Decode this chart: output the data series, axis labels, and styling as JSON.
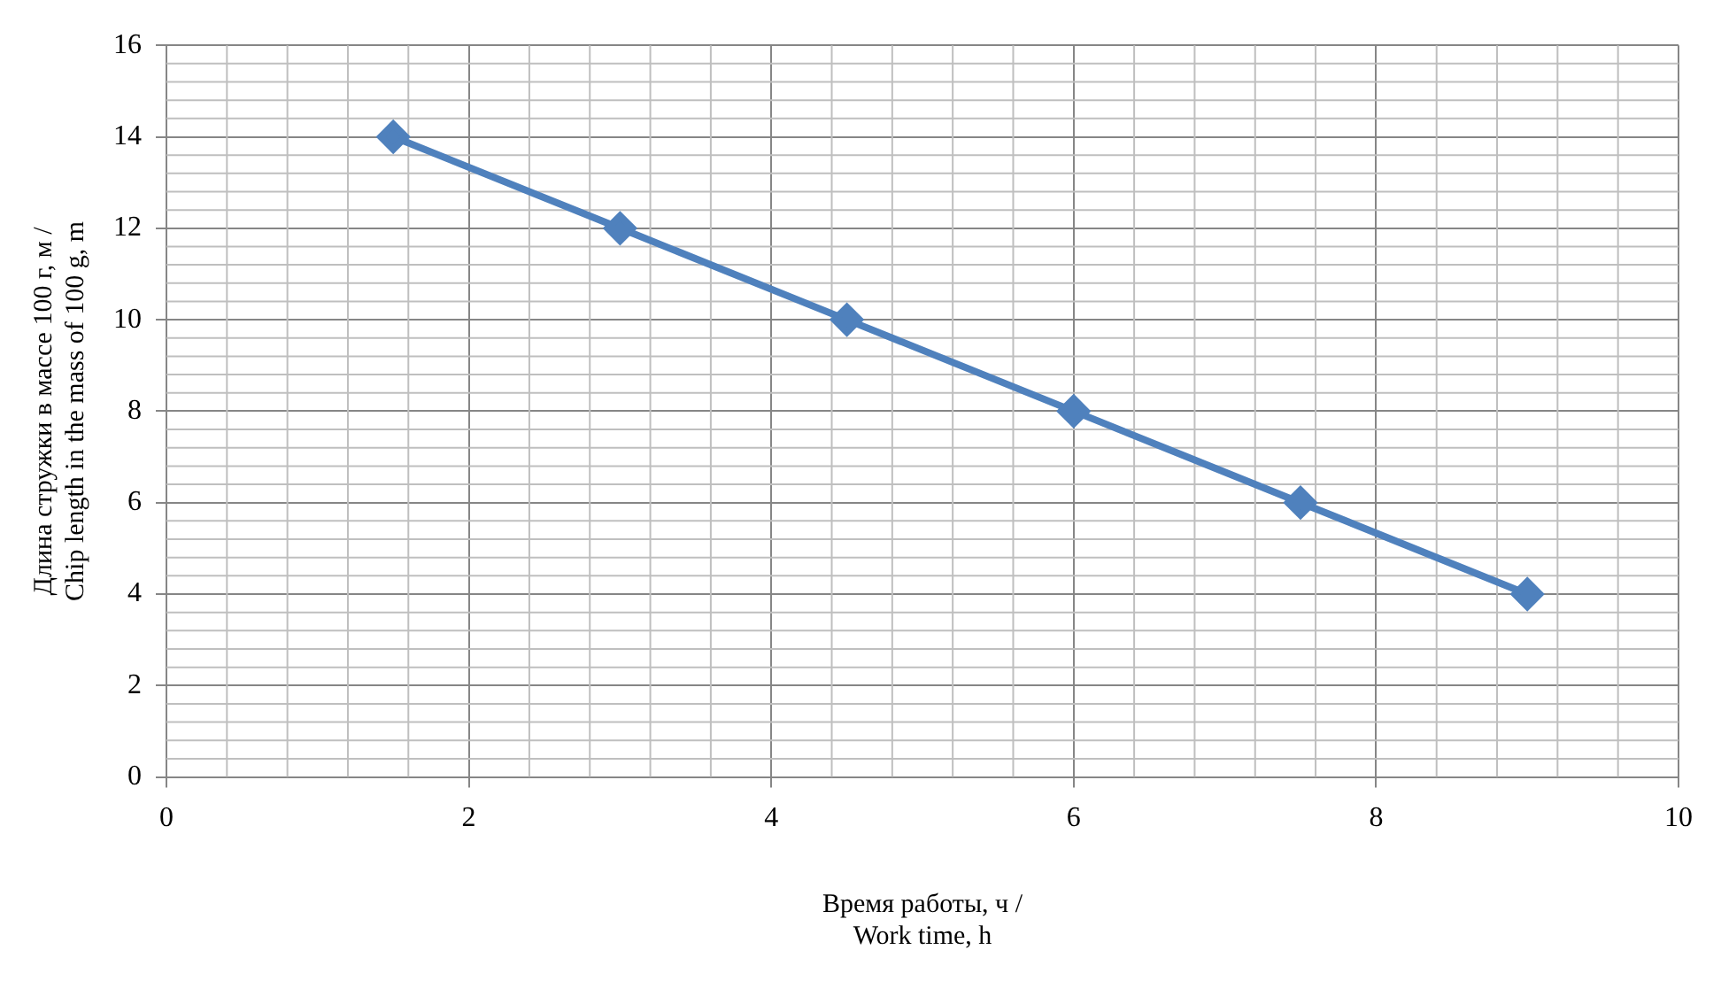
{
  "chart_data": {
    "type": "line",
    "xlabel": "Время работы, ч /\nWork time, h",
    "ylabel": "Длина стружки в массе 100 г, м /\nChip length in the mass of 100 g, m",
    "x": [
      1.5,
      3,
      4.5,
      6,
      7.5,
      9
    ],
    "series": [
      {
        "color": "#4f81bd",
        "values": [
          14,
          12,
          10,
          8,
          6,
          4
        ]
      }
    ],
    "xlim": [
      0,
      10
    ],
    "xticks": [
      0,
      2,
      4,
      6,
      8,
      10
    ],
    "ylim": [
      0,
      16
    ],
    "yticks": [
      0,
      2,
      4,
      6,
      8,
      10,
      12,
      14,
      16
    ],
    "grid": true,
    "legend": false,
    "marker": "diamond",
    "line_style": "solid"
  }
}
